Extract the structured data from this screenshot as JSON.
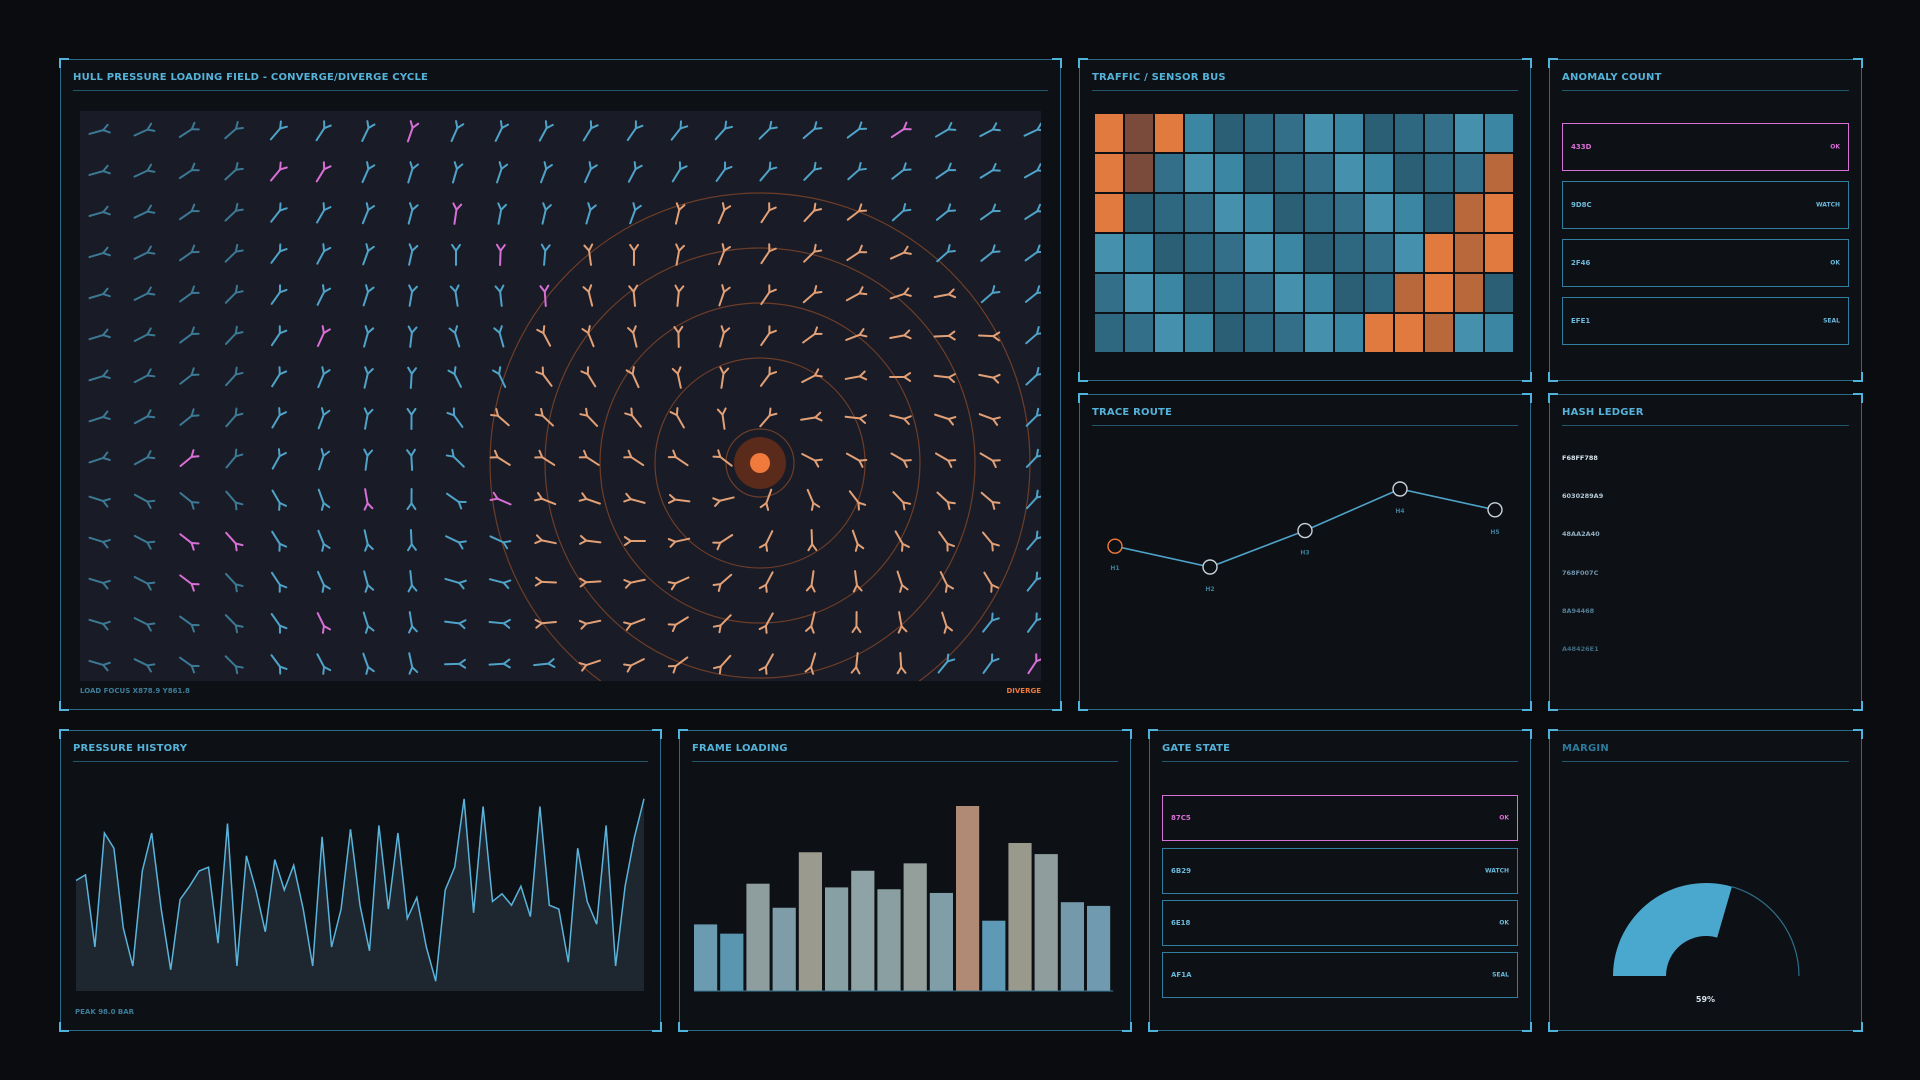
{
  "hull": {
    "title": "HULL PRESSURE LOADING FIELD - CONVERGE/DIVERGE CYCLE",
    "load_focus": "LOAD FOCUS  X878.9 Y861.8",
    "mode": "DIVERGE"
  },
  "traffic": {
    "title": "TRAFFIC / SENSOR BUS",
    "rows": [
      [
        2,
        3,
        2,
        0,
        0,
        0,
        0,
        0,
        0,
        0,
        0,
        0,
        0,
        0
      ],
      [
        2,
        3,
        0,
        0,
        0,
        0,
        0,
        0,
        0,
        0,
        0,
        0,
        0,
        3
      ],
      [
        2,
        0,
        0,
        0,
        0,
        0,
        0,
        0,
        0,
        0,
        0,
        0,
        3,
        2
      ],
      [
        0,
        0,
        0,
        0,
        0,
        0,
        0,
        0,
        0,
        0,
        0,
        2,
        3,
        2
      ],
      [
        0,
        0,
        0,
        0,
        0,
        0,
        0,
        0,
        0,
        0,
        3,
        2,
        3,
        0
      ],
      [
        0,
        0,
        0,
        0,
        0,
        0,
        0,
        0,
        0,
        2,
        2,
        3,
        0,
        0
      ]
    ]
  },
  "anomaly": {
    "title": "ANOMALY COUNT",
    "items": [
      {
        "code": "433D",
        "status": "OK",
        "alert": true
      },
      {
        "code": "9D8C",
        "status": "WATCH",
        "alert": false
      },
      {
        "code": "2F46",
        "status": "OK",
        "alert": false
      },
      {
        "code": "EFE1",
        "status": "SEAL",
        "alert": false
      }
    ]
  },
  "trace": {
    "title": "TRACE ROUTE",
    "hops": [
      "H1",
      "H2",
      "H3",
      "H4",
      "H5"
    ],
    "latency": [
      38,
      30,
      44,
      60,
      52
    ]
  },
  "ledger": {
    "title": "HASH LEDGER",
    "items": [
      "F68FF788",
      "6030289A9",
      "48AA2A40",
      "768F007C",
      "8A94468",
      "A48426E1"
    ]
  },
  "pressure": {
    "title": "PRESSURE HISTORY",
    "peak": "PEAK 98.0 BAR",
    "values": [
      55,
      58,
      20,
      80,
      72,
      30,
      10,
      60,
      80,
      40,
      8,
      45,
      52,
      60,
      62,
      22,
      85,
      10,
      68,
      50,
      28,
      66,
      50,
      63,
      40,
      10,
      78,
      20,
      40,
      82,
      42,
      18,
      84,
      40,
      80,
      35,
      46,
      20,
      2,
      50,
      62,
      98,
      38,
      94,
      44,
      48,
      42,
      52,
      36,
      94,
      42,
      40,
      12,
      72,
      44,
      32,
      84,
      10,
      52,
      78,
      98
    ]
  },
  "frame": {
    "title": "FRAME LOADING",
    "values": [
      36,
      31,
      58,
      45,
      75,
      56,
      65,
      55,
      69,
      53,
      100,
      38,
      80,
      74,
      48,
      46
    ],
    "highlight": 10
  },
  "gate": {
    "title": "GATE STATE",
    "items": [
      {
        "code": "87C5",
        "status": "OK",
        "alert": true
      },
      {
        "code": "6B29",
        "status": "WATCH",
        "alert": false
      },
      {
        "code": "6E18",
        "status": "OK",
        "alert": false
      },
      {
        "code": "AF1A",
        "status": "SEAL",
        "alert": false
      }
    ]
  },
  "margin": {
    "title": "MARGIN",
    "value_label": "59%",
    "value": 0.59
  },
  "colors": {
    "accent": "#4fa3c9",
    "orange": "#e2a077",
    "magenta": "#d86fd6",
    "hot": "#f07a3c"
  }
}
